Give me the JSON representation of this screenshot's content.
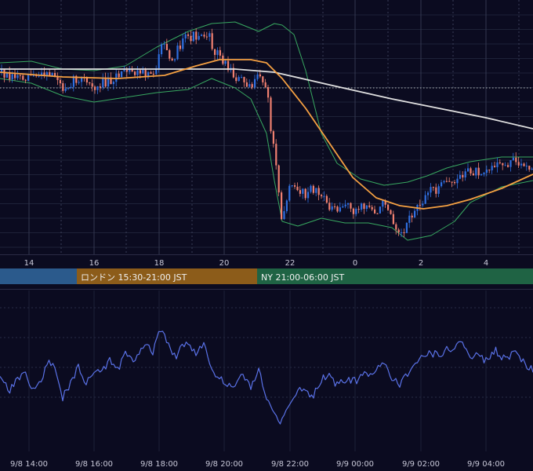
{
  "chart_data": [
    {
      "type": "candlestick",
      "panel": "price",
      "x_ticks": [
        "14",
        "16",
        "18",
        "20",
        "22",
        "0",
        "2",
        "4"
      ],
      "reference_line": "dotted horizontal price level",
      "candles": {
        "up_color": "#2f6fe0",
        "down_color": "#f08070",
        "path": [
          [
            0,
            92
          ],
          [
            14,
            95
          ],
          [
            28,
            97
          ],
          [
            40,
            94
          ],
          [
            55,
            98
          ],
          [
            68,
            93
          ],
          [
            78,
            112
          ],
          [
            90,
            104
          ],
          [
            102,
            100
          ],
          [
            118,
            112
          ],
          [
            132,
            104
          ],
          [
            148,
            97
          ],
          [
            165,
            92
          ],
          [
            180,
            95
          ],
          [
            196,
            90
          ],
          [
            206,
            60
          ],
          [
            220,
            72
          ],
          [
            236,
            50
          ],
          [
            250,
            44
          ],
          [
            262,
            40
          ],
          [
            272,
            62
          ],
          [
            286,
            80
          ],
          [
            296,
            96
          ],
          [
            310,
            102
          ],
          [
            322,
            108
          ],
          [
            332,
            96
          ],
          [
            340,
            118
          ],
          [
            346,
            178
          ],
          [
            352,
            210
          ],
          [
            358,
            276
          ],
          [
            366,
            252
          ],
          [
            372,
            228
          ],
          [
            380,
            244
          ],
          [
            390,
            250
          ],
          [
            400,
            238
          ],
          [
            412,
            256
          ],
          [
            424,
            264
          ],
          [
            438,
            260
          ],
          [
            452,
            268
          ],
          [
            466,
            262
          ],
          [
            478,
            270
          ],
          [
            492,
            256
          ],
          [
            500,
            278
          ],
          [
            510,
            296
          ],
          [
            520,
            282
          ],
          [
            530,
            264
          ],
          [
            545,
            244
          ],
          [
            560,
            238
          ],
          [
            575,
            232
          ],
          [
            590,
            222
          ],
          [
            605,
            218
          ],
          [
            620,
            214
          ],
          [
            635,
            212
          ],
          [
            650,
            206
          ],
          [
            660,
            204
          ],
          [
            668,
            214
          ],
          [
            680,
            222
          ]
        ]
      },
      "series": [
        {
          "color": "#e0e0e0",
          "y": [
            [
              0,
              88
            ],
            [
              300,
              88
            ],
            [
              350,
              92
            ],
            [
              420,
              108
            ],
            [
              500,
              126
            ],
            [
              560,
              138
            ],
            [
              620,
              150
            ],
            [
              680,
              164
            ]
          ]
        },
        {
          "color": "#f5a042",
          "y": [
            [
              0,
              92
            ],
            [
              80,
              98
            ],
            [
              150,
              100
            ],
            [
              210,
              96
            ],
            [
              250,
              84
            ],
            [
              280,
              76
            ],
            [
              320,
              76
            ],
            [
              340,
              80
            ],
            [
              360,
              100
            ],
            [
              390,
              138
            ],
            [
              420,
              182
            ],
            [
              450,
              226
            ],
            [
              480,
              252
            ],
            [
              510,
              262
            ],
            [
              540,
              266
            ],
            [
              570,
              262
            ],
            [
              600,
              254
            ],
            [
              640,
              240
            ],
            [
              680,
              222
            ]
          ]
        },
        {
          "color": "#38a860",
          "y": [
            [
              0,
              80
            ],
            [
              40,
              78
            ],
            [
              80,
              88
            ],
            [
              120,
              90
            ],
            [
              160,
              84
            ],
            [
              200,
              60
            ],
            [
              240,
              40
            ],
            [
              270,
              30
            ],
            [
              300,
              28
            ],
            [
              330,
              40
            ],
            [
              350,
              30
            ],
            [
              360,
              32
            ],
            [
              375,
              44
            ],
            [
              390,
              90
            ],
            [
              410,
              170
            ],
            [
              430,
              208
            ],
            [
              460,
              228
            ],
            [
              490,
              236
            ],
            [
              520,
              232
            ],
            [
              545,
              224
            ],
            [
              570,
              214
            ],
            [
              600,
              206
            ],
            [
              640,
              200
            ],
            [
              680,
              200
            ]
          ]
        },
        {
          "color": "#38a860",
          "y": [
            [
              0,
              100
            ],
            [
              40,
              106
            ],
            [
              80,
              122
            ],
            [
              120,
              130
            ],
            [
              160,
              124
            ],
            [
              200,
              118
            ],
            [
              240,
              114
            ],
            [
              270,
              100
            ],
            [
              300,
              112
            ],
            [
              320,
              126
            ],
            [
              340,
              170
            ],
            [
              350,
              230
            ],
            [
              360,
              282
            ],
            [
              380,
              288
            ],
            [
              410,
              278
            ],
            [
              440,
              284
            ],
            [
              470,
              284
            ],
            [
              500,
              290
            ],
            [
              520,
              306
            ],
            [
              550,
              300
            ],
            [
              580,
              282
            ],
            [
              600,
              258
            ],
            [
              640,
              238
            ],
            [
              680,
              230
            ]
          ]
        }
      ]
    },
    {
      "type": "bar",
      "panel": "sessions",
      "sessions": [
        {
          "label": "",
          "color": "#2b5a8c"
        },
        {
          "label": "ロンドン 15:30-21:00 JST",
          "color": "#8c5c1a"
        },
        {
          "label": "NY 21:00-06:00 JST",
          "color": "#1f6344"
        }
      ]
    },
    {
      "type": "line",
      "panel": "oscillator",
      "color": "#5a72e8",
      "x_ticks": [
        "9/8 14:00",
        "9/8 16:00",
        "9/8 18:00",
        "9/8 20:00",
        "9/8 22:00",
        "9/9 00:00",
        "9/9 02:00",
        "9/9 04:00"
      ],
      "y": [
        [
          0,
          482
        ],
        [
          12,
          498
        ],
        [
          22,
          484
        ],
        [
          32,
          474
        ],
        [
          40,
          496
        ],
        [
          50,
          490
        ],
        [
          62,
          462
        ],
        [
          72,
          472
        ],
        [
          80,
          506
        ],
        [
          90,
          490
        ],
        [
          100,
          466
        ],
        [
          110,
          488
        ],
        [
          120,
          474
        ],
        [
          132,
          472
        ],
        [
          140,
          460
        ],
        [
          150,
          470
        ],
        [
          160,
          452
        ],
        [
          172,
          460
        ],
        [
          184,
          440
        ],
        [
          196,
          448
        ],
        [
          204,
          418
        ],
        [
          214,
          434
        ],
        [
          224,
          458
        ],
        [
          232,
          440
        ],
        [
          240,
          434
        ],
        [
          250,
          452
        ],
        [
          260,
          438
        ],
        [
          270,
          470
        ],
        [
          280,
          482
        ],
        [
          290,
          490
        ],
        [
          300,
          496
        ],
        [
          310,
          476
        ],
        [
          320,
          492
        ],
        [
          330,
          470
        ],
        [
          340,
          510
        ],
        [
          350,
          526
        ],
        [
          358,
          540
        ],
        [
          366,
          520
        ],
        [
          376,
          502
        ],
        [
          388,
          494
        ],
        [
          398,
          508
        ],
        [
          408,
          486
        ],
        [
          418,
          476
        ],
        [
          430,
          490
        ],
        [
          440,
          484
        ],
        [
          452,
          486
        ],
        [
          464,
          478
        ],
        [
          476,
          480
        ],
        [
          488,
          460
        ],
        [
          498,
          478
        ],
        [
          510,
          490
        ],
        [
          520,
          478
        ],
        [
          530,
          460
        ],
        [
          540,
          452
        ],
        [
          550,
          450
        ],
        [
          560,
          452
        ],
        [
          570,
          446
        ],
        [
          580,
          440
        ],
        [
          590,
          436
        ],
        [
          600,
          456
        ],
        [
          610,
          450
        ],
        [
          620,
          460
        ],
        [
          632,
          446
        ],
        [
          644,
          458
        ],
        [
          658,
          446
        ],
        [
          668,
          462
        ],
        [
          680,
          470
        ]
      ]
    }
  ]
}
